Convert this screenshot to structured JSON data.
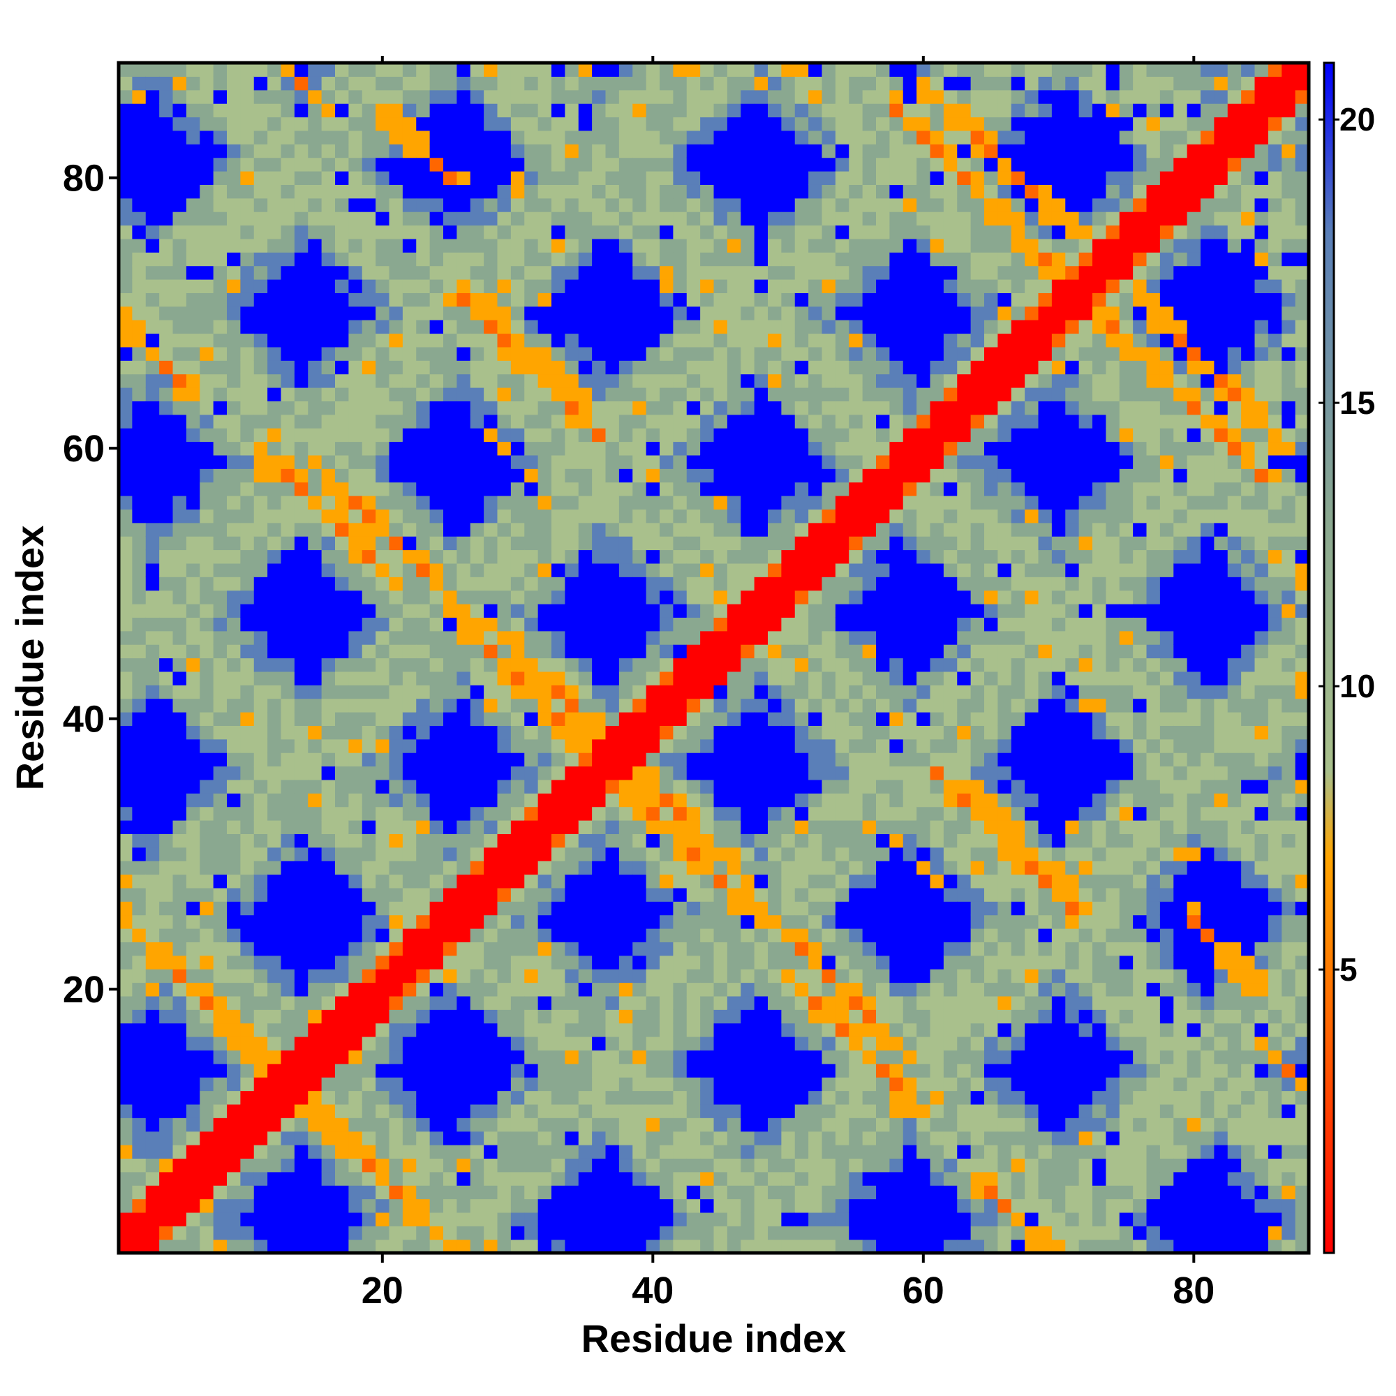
{
  "chart_data": {
    "type": "heatmap",
    "title": "",
    "xlabel": "Residue index",
    "ylabel": "Residue index",
    "n_residues": 88,
    "xlim": [
      1,
      88
    ],
    "ylim": [
      1,
      88
    ],
    "xticks": [
      20,
      40,
      60,
      80
    ],
    "yticks": [
      20,
      40,
      60,
      80
    ],
    "colorbar": {
      "ticks": [
        5,
        10,
        15,
        20
      ],
      "range": [
        0,
        21
      ],
      "stops": [
        {
          "value": 0,
          "color": "#ff0000"
        },
        {
          "value": 4,
          "color": "#ff6600"
        },
        {
          "value": 7,
          "color": "#ffa500"
        },
        {
          "value": 8.5,
          "color": "#a9c08c"
        },
        {
          "value": 13,
          "color": "#8aa890"
        },
        {
          "value": 18,
          "color": "#5a7fb8"
        },
        {
          "value": 21,
          "color": "#0000ff"
        }
      ]
    },
    "colors": {
      "diagonal": "#ff0000",
      "contact_strong": "#ff6600",
      "contact": "#ffa500",
      "near": "#a9c08c",
      "mid": "#8aa890",
      "far": "#5a7fb8",
      "none": "#0000ff"
    },
    "matrix_description": "symmetric residue-residue distance map; diagonal red, off-diagonal contact bands in orange, blue where distance exceeds cutoff",
    "diagonal_width": 2,
    "contact_bands": [
      {
        "i_start": 3,
        "j_start": 23,
        "direction": "anti",
        "length": 14
      },
      {
        "i_start": 14,
        "j_start": 12,
        "direction": "anti",
        "length": 12
      },
      {
        "i_start": 15,
        "j_start": 59,
        "direction": "anti",
        "length": 11
      },
      {
        "i_start": 20,
        "j_start": 85,
        "direction": "anti",
        "length": 6
      },
      {
        "i_start": 27,
        "j_start": 71,
        "direction": "anti",
        "length": 9
      },
      {
        "i_start": 28,
        "j_start": 47,
        "direction": "anti",
        "length": 10
      },
      {
        "i_start": 38,
        "j_start": 35,
        "direction": "anti",
        "length": 11
      },
      {
        "i_start": 50,
        "j_start": 21,
        "direction": "anti",
        "length": 11
      },
      {
        "i_start": 61,
        "j_start": 36,
        "direction": "anti",
        "length": 11
      },
      {
        "i_start": 60,
        "j_start": 87,
        "direction": "anti",
        "length": 12
      },
      {
        "i_start": 72,
        "j_start": 71,
        "direction": "anti",
        "length": 14
      },
      {
        "i_start": 64,
        "j_start": 6,
        "direction": "anti",
        "length": 6
      },
      {
        "i_start": 85,
        "j_start": 16,
        "direction": "anti",
        "length": 6
      }
    ]
  }
}
